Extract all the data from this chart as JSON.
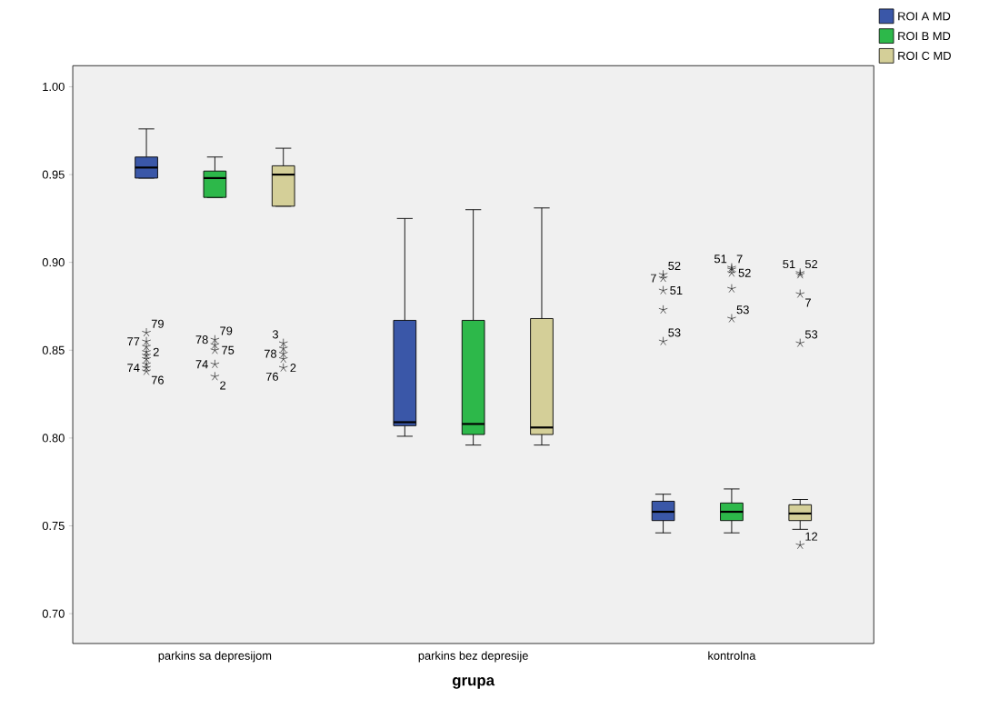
{
  "chart_data": {
    "type": "box",
    "xlabel": "grupa",
    "categories": [
      "parkins sa depresijom",
      "parkins bez depresije",
      "kontrolna"
    ],
    "series": [
      {
        "name": "ROI A MD",
        "color": "#3a57a8",
        "boxes": [
          {
            "low": 0.948,
            "q1": 0.948,
            "median": 0.954,
            "q3": 0.96,
            "high": 0.976,
            "outliers": [
              0.86,
              0.855,
              0.852,
              0.849,
              0.847,
              0.845,
              0.842,
              0.84,
              0.838
            ]
          },
          {
            "low": 0.801,
            "q1": 0.807,
            "median": 0.809,
            "q3": 0.867,
            "high": 0.925
          },
          {
            "low": 0.746,
            "q1": 0.753,
            "median": 0.758,
            "q3": 0.764,
            "high": 0.768,
            "outliers": [
              0.893,
              0.891,
              0.884,
              0.873,
              0.855
            ]
          }
        ]
      },
      {
        "name": "ROI B MD",
        "color": "#2db84a",
        "boxes": [
          {
            "low": 0.937,
            "q1": 0.937,
            "median": 0.948,
            "q3": 0.952,
            "high": 0.96,
            "outliers": [
              0.856,
              0.853,
              0.85,
              0.842,
              0.835
            ]
          },
          {
            "low": 0.796,
            "q1": 0.802,
            "median": 0.808,
            "q3": 0.867,
            "high": 0.93
          },
          {
            "low": 0.746,
            "q1": 0.753,
            "median": 0.758,
            "q3": 0.763,
            "high": 0.771,
            "outliers": [
              0.897,
              0.896,
              0.894,
              0.885,
              0.868
            ]
          }
        ]
      },
      {
        "name": "ROI C MD",
        "color": "#d4cf98",
        "boxes": [
          {
            "low": 0.932,
            "q1": 0.932,
            "median": 0.95,
            "q3": 0.955,
            "high": 0.965,
            "outliers": [
              0.854,
              0.851,
              0.848,
              0.845,
              0.84
            ]
          },
          {
            "low": 0.796,
            "q1": 0.802,
            "median": 0.806,
            "q3": 0.868,
            "high": 0.931
          },
          {
            "low": 0.748,
            "q1": 0.753,
            "median": 0.757,
            "q3": 0.762,
            "high": 0.765,
            "outliers": [
              0.894,
              0.893,
              0.882,
              0.854,
              0.739
            ]
          }
        ]
      }
    ],
    "ylim": [
      0.683,
      1.012
    ],
    "yticks": [
      {
        "value": 0.7,
        "label": "0.70"
      },
      {
        "value": 0.75,
        "label": "0.75"
      },
      {
        "value": 0.8,
        "label": "0.80"
      },
      {
        "value": 0.85,
        "label": "0.85"
      },
      {
        "value": 0.9,
        "label": "0.90"
      },
      {
        "value": 0.95,
        "label": "0.95"
      },
      {
        "value": 1.0,
        "label": "1.00"
      }
    ],
    "legend": "top right",
    "grid": false,
    "marker": "star",
    "annotations": [
      "79",
      "77",
      "2",
      "74",
      "76",
      "79",
      "78",
      "75",
      "74",
      "2",
      "3",
      "78",
      "76",
      "2",
      "52",
      "7",
      "51",
      "53",
      "51",
      "7",
      "52",
      "53",
      "51",
      "52",
      "7",
      "53",
      "12"
    ]
  }
}
